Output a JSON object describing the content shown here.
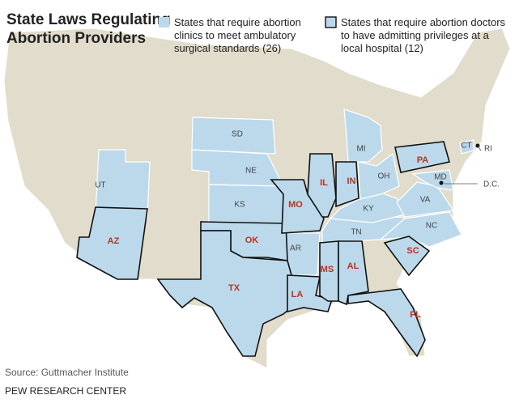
{
  "header": {
    "title": [
      "State Laws Regulating",
      "Abortion Providers"
    ]
  },
  "legend": [
    {
      "lines": [
        "States that require abortion",
        "clinics to meet ambulatory",
        "surgical standards (26)"
      ],
      "color": "#bcd9ec"
    },
    {
      "lines": [
        "States that require abortion doctors",
        "to have admitting privileges at a",
        "local hospital (12)"
      ],
      "color": "#bcd9ec"
    }
  ],
  "map": {
    "labels": [
      "SD",
      "NE",
      "KS",
      "UT",
      "AZ",
      "OK",
      "TX",
      "MO",
      "AR",
      "LA",
      "MS",
      "AL",
      "FL",
      "SC",
      "NC",
      "TN",
      "KY",
      "VA",
      "IL",
      "IN",
      "OH",
      "MI",
      "PA",
      "MD",
      "CT",
      "RI",
      "D.C."
    ]
  },
  "footer": {
    "source": "Source: Guttmacher Institute",
    "org": "PEW RESEARCH CENTER"
  }
}
